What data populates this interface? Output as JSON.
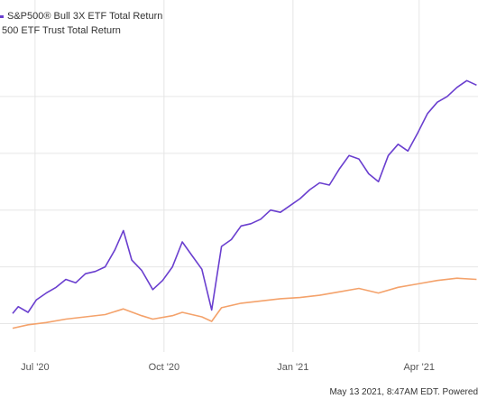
{
  "chart_data": {
    "type": "line",
    "x_ticks": [
      "Jul '20",
      "Oct '20",
      "Jan '21",
      "Apr '21"
    ],
    "series": [
      {
        "name": "S&P500® Bull 3X ETF Total Return",
        "color": "#6a3fcf",
        "points": [
          [
            "2020-06-15",
            9
          ],
          [
            "2020-06-19",
            15
          ],
          [
            "2020-06-26",
            10
          ],
          [
            "2020-07-02",
            21
          ],
          [
            "2020-07-09",
            27
          ],
          [
            "2020-07-16",
            32
          ],
          [
            "2020-07-23",
            39
          ],
          [
            "2020-07-30",
            36
          ],
          [
            "2020-08-06",
            44
          ],
          [
            "2020-08-13",
            46
          ],
          [
            "2020-08-20",
            50
          ],
          [
            "2020-08-27",
            65
          ],
          [
            "2020-09-02",
            82
          ],
          [
            "2020-09-08",
            56
          ],
          [
            "2020-09-15",
            47
          ],
          [
            "2020-09-23",
            30
          ],
          [
            "2020-09-30",
            38
          ],
          [
            "2020-10-07",
            50
          ],
          [
            "2020-10-14",
            72
          ],
          [
            "2020-10-21",
            60
          ],
          [
            "2020-10-28",
            48
          ],
          [
            "2020-11-04",
            12
          ],
          [
            "2020-11-11",
            68
          ],
          [
            "2020-11-18",
            74
          ],
          [
            "2020-11-25",
            86
          ],
          [
            "2020-12-02",
            88
          ],
          [
            "2020-12-09",
            92
          ],
          [
            "2020-12-16",
            100
          ],
          [
            "2020-12-23",
            98
          ],
          [
            "2020-12-30",
            104
          ],
          [
            "2021-01-06",
            110
          ],
          [
            "2021-01-13",
            118
          ],
          [
            "2021-01-20",
            124
          ],
          [
            "2021-01-27",
            122
          ],
          [
            "2021-02-03",
            136
          ],
          [
            "2021-02-10",
            148
          ],
          [
            "2021-02-17",
            145
          ],
          [
            "2021-02-24",
            132
          ],
          [
            "2021-03-03",
            125
          ],
          [
            "2021-03-10",
            148
          ],
          [
            "2021-03-17",
            158
          ],
          [
            "2021-03-24",
            152
          ],
          [
            "2021-03-31",
            168
          ],
          [
            "2021-04-07",
            185
          ],
          [
            "2021-04-14",
            195
          ],
          [
            "2021-04-21",
            200
          ],
          [
            "2021-04-28",
            208
          ],
          [
            "2021-05-05",
            214
          ],
          [
            "2021-05-12",
            210
          ]
        ]
      },
      {
        "name": "500 ETF Trust Total Return",
        "color": "#f4a26b",
        "points": [
          [
            "2020-06-15",
            -4
          ],
          [
            "2020-06-26",
            -1
          ],
          [
            "2020-07-09",
            1
          ],
          [
            "2020-07-23",
            4
          ],
          [
            "2020-08-06",
            6
          ],
          [
            "2020-08-20",
            8
          ],
          [
            "2020-09-02",
            13
          ],
          [
            "2020-09-15",
            7
          ],
          [
            "2020-09-23",
            4
          ],
          [
            "2020-10-07",
            7
          ],
          [
            "2020-10-14",
            10
          ],
          [
            "2020-10-28",
            6
          ],
          [
            "2020-11-04",
            2
          ],
          [
            "2020-11-11",
            14
          ],
          [
            "2020-11-25",
            18
          ],
          [
            "2020-12-09",
            20
          ],
          [
            "2020-12-23",
            22
          ],
          [
            "2021-01-06",
            23
          ],
          [
            "2021-01-20",
            25
          ],
          [
            "2021-02-03",
            28
          ],
          [
            "2021-02-17",
            31
          ],
          [
            "2021-03-03",
            27
          ],
          [
            "2021-03-17",
            32
          ],
          [
            "2021-03-31",
            35
          ],
          [
            "2021-04-14",
            38
          ],
          [
            "2021-04-28",
            40
          ],
          [
            "2021-05-12",
            39
          ]
        ]
      }
    ],
    "xlim": [
      "2020-06-06",
      "2021-05-13"
    ],
    "ylim": [
      -25,
      250
    ],
    "grid": true,
    "legend_position": "top-left"
  },
  "footer": {
    "text": "May 13 2021, 8:47AM EDT. Powered"
  }
}
